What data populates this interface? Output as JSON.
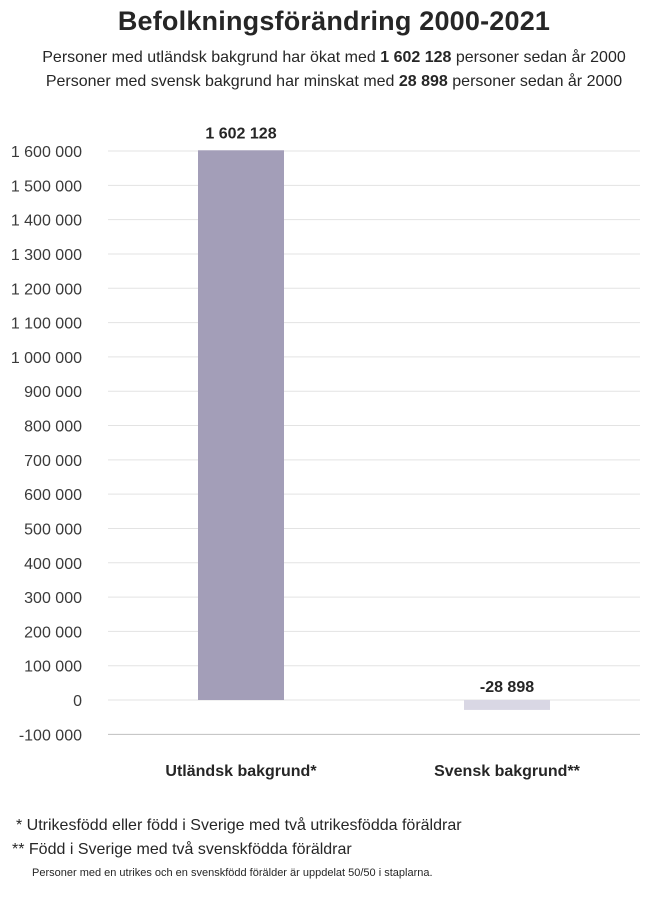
{
  "title": "Befolkningsförändring 2000-2021",
  "subtitle": {
    "line1": {
      "pre": "Personer med utländsk bakgrund har ökat med ",
      "value": "1 602 128",
      "post": " personer sedan år 2000"
    },
    "line2": {
      "pre": "Personer med svensk bakgrund har minskat med ",
      "value": "28 898",
      "post": " personer sedan år 2000"
    }
  },
  "chart_data": {
    "type": "bar",
    "categories": [
      "Utländsk bakgrund*",
      "Svensk bakgrund**"
    ],
    "values": [
      1602128,
      -28898
    ],
    "data_labels": [
      "1 602 128",
      "-28 898"
    ],
    "ylim": [
      -100000,
      1600000
    ],
    "yticks": [
      -100000,
      0,
      100000,
      200000,
      300000,
      400000,
      500000,
      600000,
      700000,
      800000,
      900000,
      1000000,
      1100000,
      1200000,
      1300000,
      1400000,
      1500000,
      1600000
    ],
    "ytick_labels": [
      "-100 000",
      "0",
      "100 000",
      "200 000",
      "300 000",
      "400 000",
      "500 000",
      "600 000",
      "700 000",
      "800 000",
      "900 000",
      "1 000 000",
      "1 100 000",
      "1 200 000",
      "1 300 000",
      "1 400 000",
      "1 500 000",
      "1 600 000"
    ],
    "grid": true,
    "legend": "none",
    "colors": [
      "#a39eb8",
      "#d9d7e4"
    ]
  },
  "footnotes": [
    "* Utrikesfödd eller född i Sverige med två utrikesfödda föräldrar",
    "** Född i Sverige med två svenskfödda föräldrar",
    "Personer med en utrikes och en svenskfödd förälder är uppdelat 50/50 i staplarna."
  ]
}
